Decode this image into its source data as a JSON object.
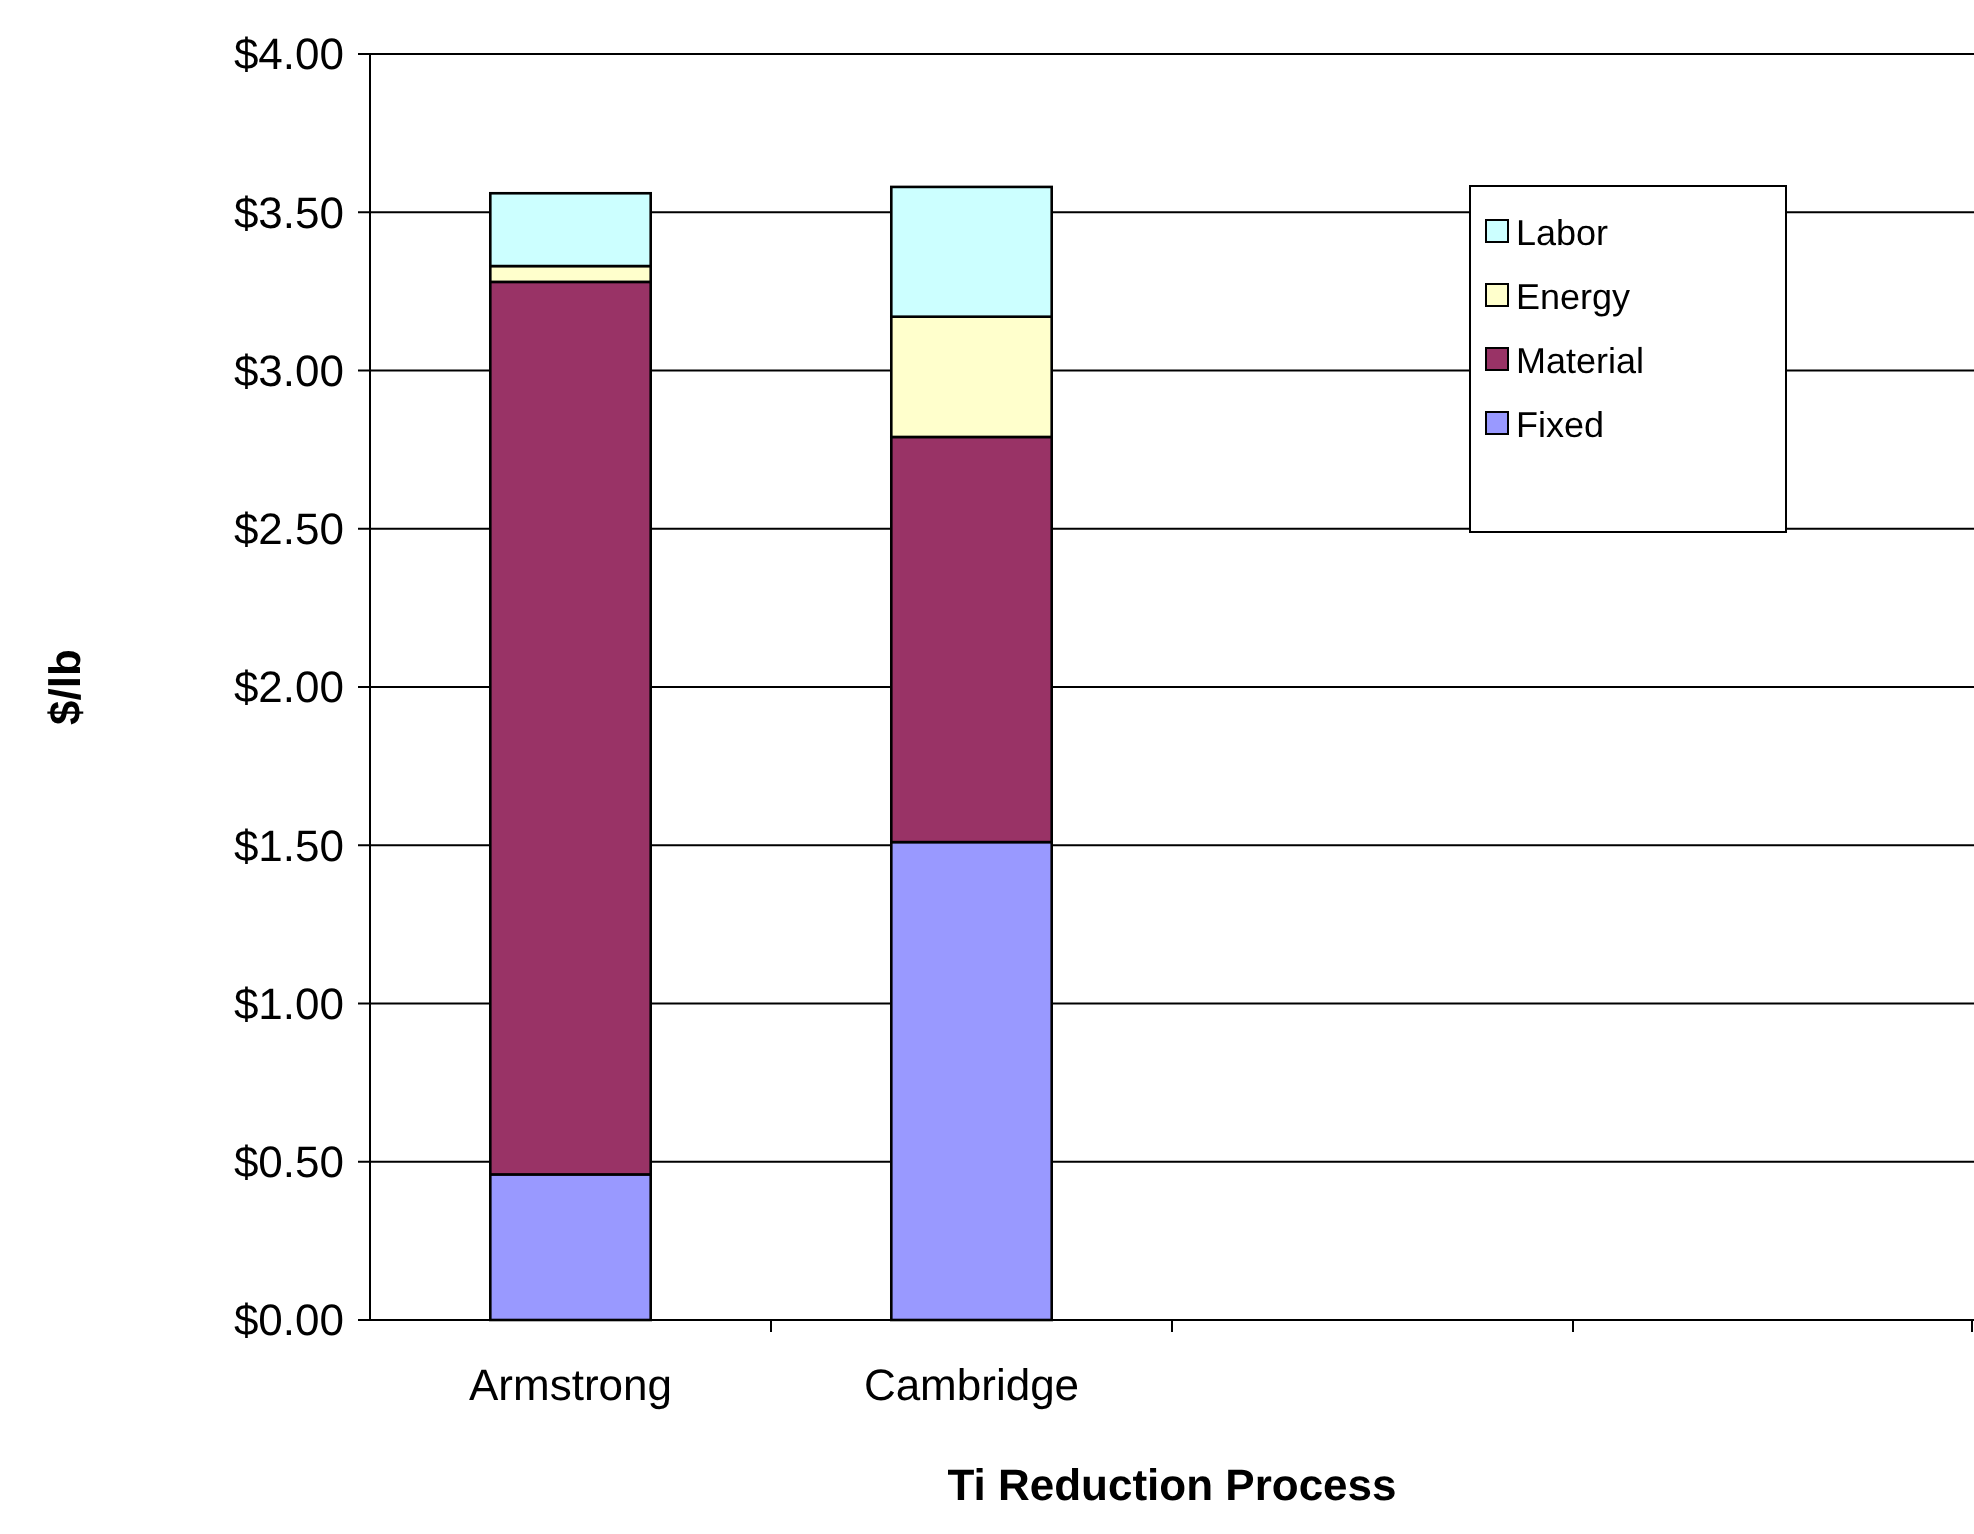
{
  "chart_data": {
    "type": "bar",
    "stacked": true,
    "xlabel": "Ti Reduction Process",
    "ylabel": "$/lb",
    "categories": [
      "Armstrong",
      "Cambridge",
      null,
      null
    ],
    "series": [
      {
        "name": "Fixed",
        "color": "#9999ff",
        "values": [
          0.46,
          1.51,
          null,
          null
        ]
      },
      {
        "name": "Material",
        "color": "#993366",
        "values": [
          2.82,
          1.28,
          null,
          null
        ]
      },
      {
        "name": "Energy",
        "color": "#ffffcc",
        "values": [
          0.05,
          0.38,
          null,
          null
        ]
      },
      {
        "name": "Labor",
        "color": "#ccffff",
        "values": [
          0.23,
          0.41,
          null,
          null
        ]
      }
    ],
    "ylim": [
      0,
      4
    ],
    "yticks": [
      {
        "value": 0,
        "label": "$0.00"
      },
      {
        "value": 0.5,
        "label": "$0.50"
      },
      {
        "value": 1,
        "label": "$1.00"
      },
      {
        "value": 1.5,
        "label": "$1.50"
      },
      {
        "value": 2,
        "label": "$2.00"
      },
      {
        "value": 2.5,
        "label": "$2.50"
      },
      {
        "value": 3,
        "label": "$3.00"
      },
      {
        "value": 3.5,
        "label": "$3.50"
      },
      {
        "value": 4,
        "label": "$4.00"
      }
    ],
    "grid": "y",
    "legend": "top right"
  }
}
